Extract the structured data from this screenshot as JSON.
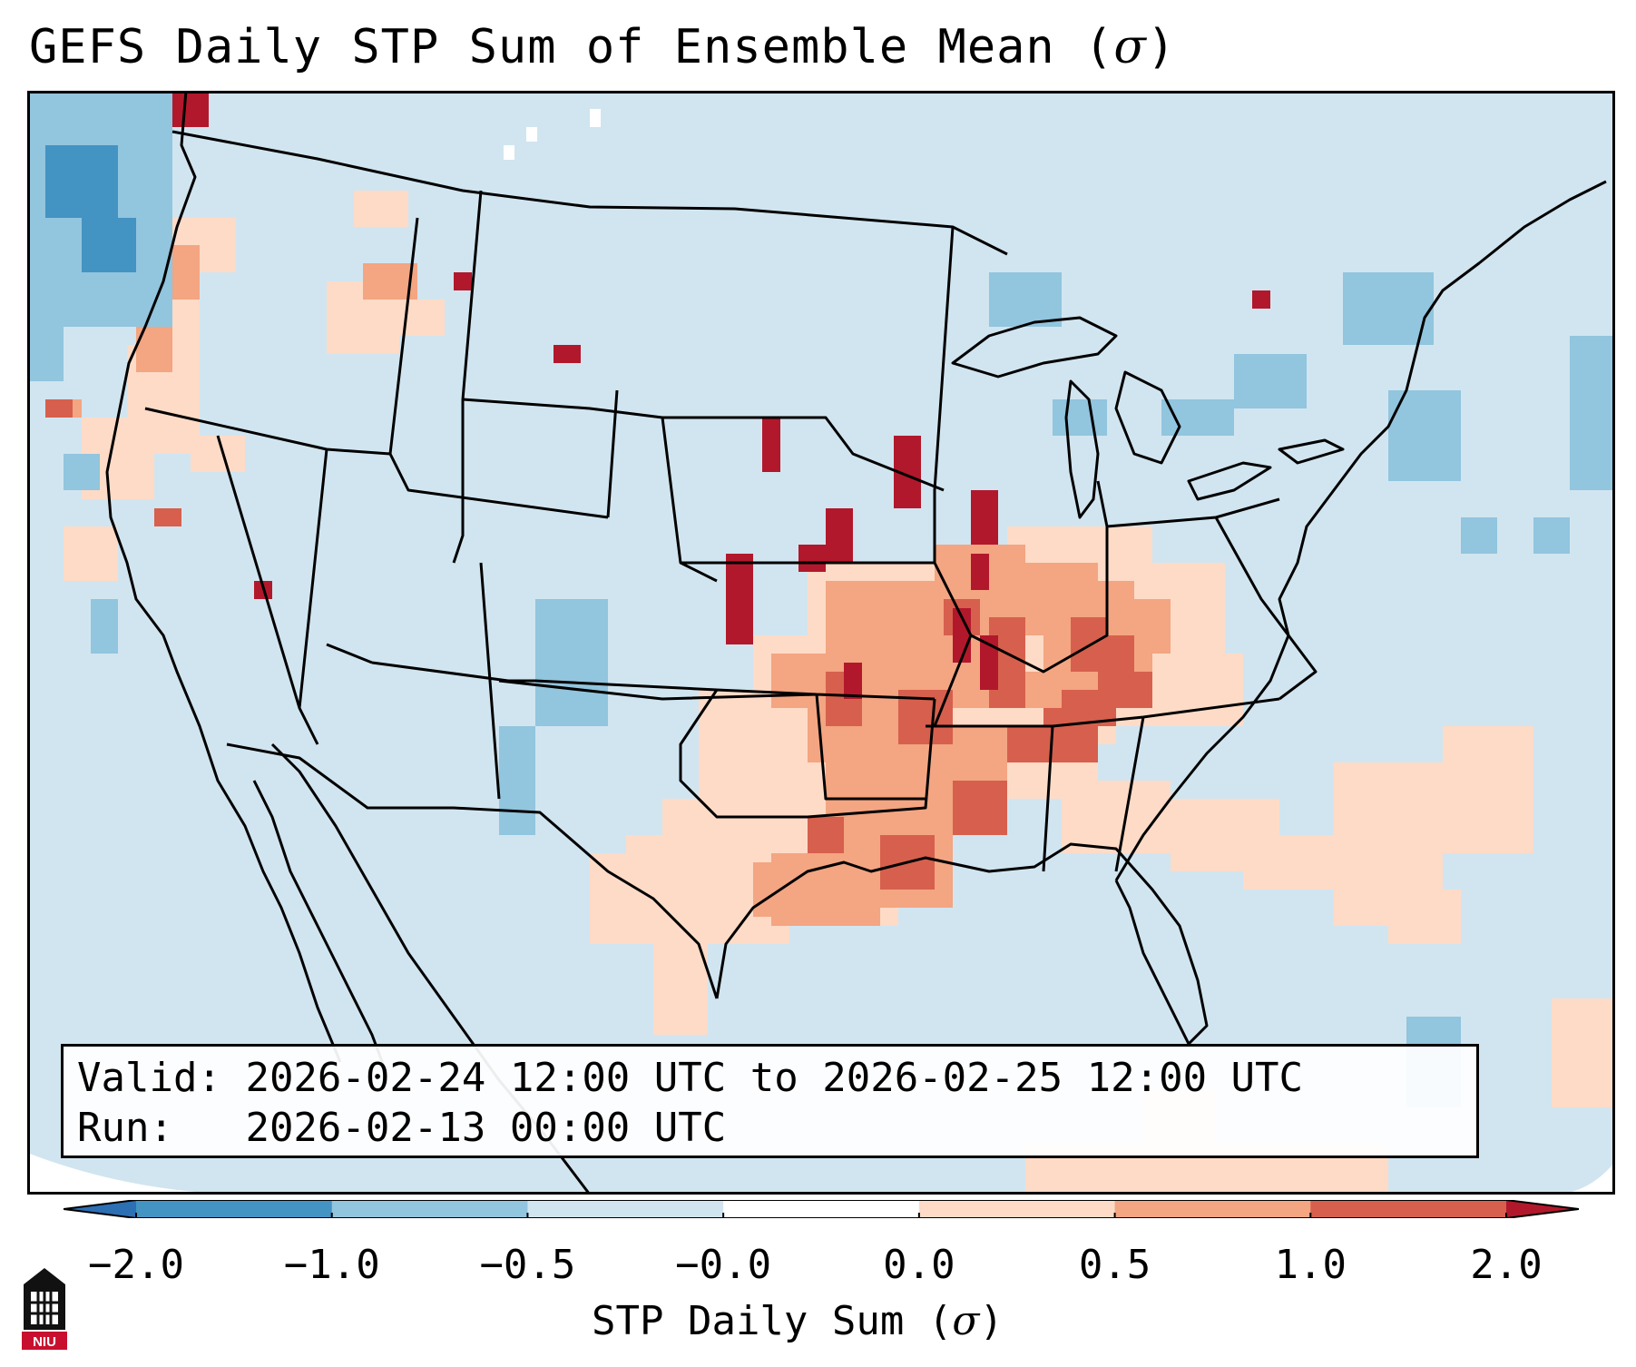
{
  "title": {
    "text": "GEFS Daily STP Sum of Ensemble Mean (",
    "symbol": "σ",
    "close": ")"
  },
  "infobox": {
    "valid_label": "Valid:",
    "valid_value": "2026-02-24 12:00 UTC to 2026-02-25 12:00 UTC",
    "run_label": "Run:",
    "run_value": "2026-02-13 00:00 UTC"
  },
  "colorbar": {
    "label_text": "STP Daily Sum (",
    "label_symbol": "σ",
    "label_close": ")",
    "ticks": [
      "−2.0",
      "−1.0",
      "−0.5",
      "−0.0",
      "0.0",
      "0.5",
      "1.0",
      "2.0"
    ],
    "colors": [
      "#2c6fb3",
      "#4393c3",
      "#92c5de",
      "#d1e5f0",
      "#ffffff",
      "#fddbc7",
      "#f4a582",
      "#d6604d",
      "#b2182b"
    ]
  },
  "map": {
    "background_color": "#d1e5f0",
    "extreme_color": "#b2182b",
    "strong_color": "#d6604d",
    "moderate_color": "#f4a582",
    "weak_color": "#fddbc7",
    "neg_weak_color": "#92c5de",
    "neg_strong_color": "#4393c3"
  },
  "logo": {
    "text": "NIU",
    "color": "#c8102e"
  }
}
